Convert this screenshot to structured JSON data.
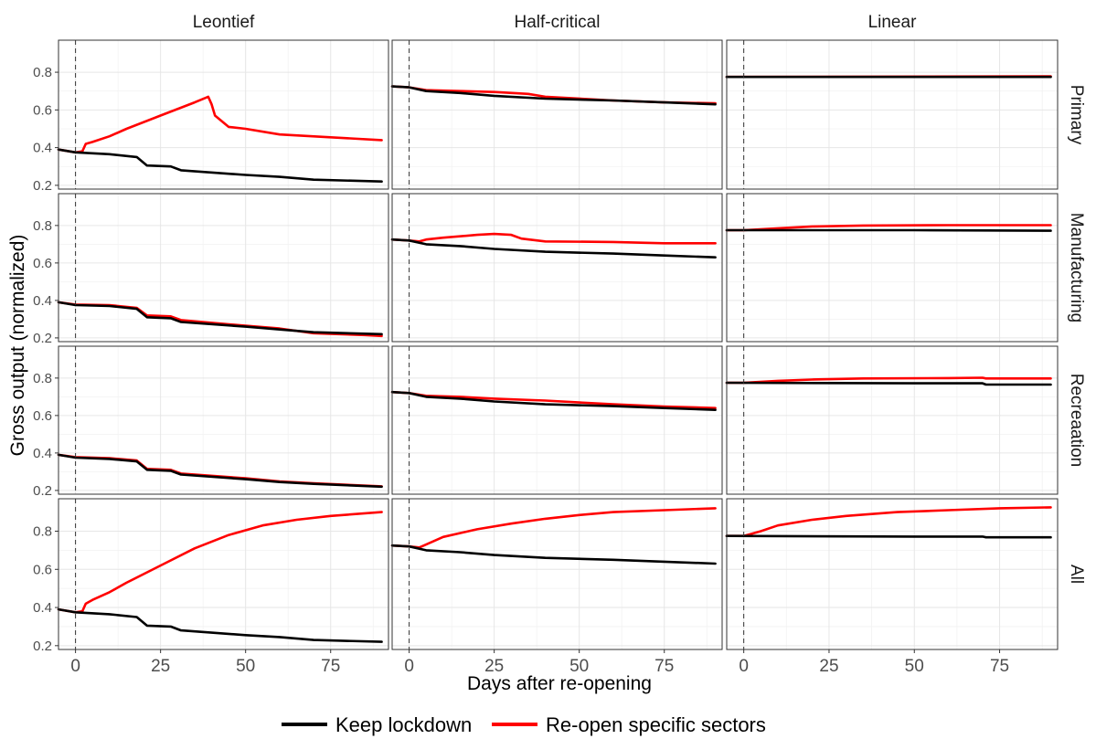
{
  "chart_data": {
    "type": "line",
    "xlabel": "Days after re-opening",
    "ylabel": "Gross output (normalized)",
    "xlim": [
      -5,
      92
    ],
    "ylim": [
      0.18,
      0.97
    ],
    "x_ticks": [
      0,
      25,
      50,
      75
    ],
    "y_ticks": [
      0.2,
      0.4,
      0.6,
      0.8
    ],
    "reference_line_x": 0,
    "columns": [
      "Leontief",
      "Half-critical",
      "Linear"
    ],
    "rows": [
      "Primary",
      "Manufacturing",
      "Recreaation",
      "All"
    ],
    "legend": {
      "position": "bottom",
      "items": [
        {
          "name": "Keep lockdown",
          "color": "#000000"
        },
        {
          "name": "Re-open specific sectors",
          "color": "#ff0000"
        }
      ]
    },
    "panels": [
      {
        "row": "Primary",
        "col": "Leontief",
        "lockdown": [
          [
            -5,
            0.39
          ],
          [
            0,
            0.375
          ],
          [
            10,
            0.365
          ],
          [
            18,
            0.35
          ],
          [
            21,
            0.305
          ],
          [
            28,
            0.3
          ],
          [
            31,
            0.28
          ],
          [
            50,
            0.255
          ],
          [
            60,
            0.245
          ],
          [
            70,
            0.23
          ],
          [
            90,
            0.22
          ]
        ],
        "reopen": [
          [
            -5,
            0.39
          ],
          [
            0,
            0.375
          ],
          [
            2,
            0.38
          ],
          [
            3,
            0.42
          ],
          [
            5,
            0.43
          ],
          [
            10,
            0.46
          ],
          [
            15,
            0.5
          ],
          [
            25,
            0.57
          ],
          [
            35,
            0.64
          ],
          [
            39,
            0.67
          ],
          [
            40,
            0.63
          ],
          [
            41,
            0.57
          ],
          [
            45,
            0.51
          ],
          [
            50,
            0.5
          ],
          [
            60,
            0.47
          ],
          [
            75,
            0.455
          ],
          [
            90,
            0.44
          ]
        ]
      },
      {
        "row": "Primary",
        "col": "Half-critical",
        "lockdown": [
          [
            -5,
            0.725
          ],
          [
            0,
            0.72
          ],
          [
            5,
            0.7
          ],
          [
            15,
            0.69
          ],
          [
            25,
            0.675
          ],
          [
            40,
            0.66
          ],
          [
            60,
            0.65
          ],
          [
            75,
            0.64
          ],
          [
            90,
            0.63
          ]
        ],
        "reopen": [
          [
            -5,
            0.725
          ],
          [
            0,
            0.72
          ],
          [
            5,
            0.705
          ],
          [
            15,
            0.7
          ],
          [
            25,
            0.695
          ],
          [
            35,
            0.685
          ],
          [
            40,
            0.67
          ],
          [
            60,
            0.65
          ],
          [
            75,
            0.64
          ],
          [
            90,
            0.635
          ]
        ]
      },
      {
        "row": "Primary",
        "col": "Linear",
        "lockdown": [
          [
            -5,
            0.775
          ],
          [
            90,
            0.775
          ]
        ],
        "reopen": [
          [
            -5,
            0.775
          ],
          [
            90,
            0.778
          ]
        ]
      },
      {
        "row": "Manufacturing",
        "col": "Leontief",
        "lockdown": [
          [
            -5,
            0.39
          ],
          [
            0,
            0.375
          ],
          [
            10,
            0.37
          ],
          [
            18,
            0.355
          ],
          [
            21,
            0.31
          ],
          [
            28,
            0.305
          ],
          [
            31,
            0.285
          ],
          [
            50,
            0.26
          ],
          [
            60,
            0.245
          ],
          [
            70,
            0.23
          ],
          [
            90,
            0.22
          ]
        ],
        "reopen": [
          [
            -5,
            0.39
          ],
          [
            0,
            0.378
          ],
          [
            10,
            0.375
          ],
          [
            18,
            0.36
          ],
          [
            21,
            0.32
          ],
          [
            28,
            0.315
          ],
          [
            31,
            0.295
          ],
          [
            50,
            0.265
          ],
          [
            60,
            0.25
          ],
          [
            70,
            0.225
          ],
          [
            85,
            0.215
          ],
          [
            90,
            0.21
          ]
        ]
      },
      {
        "row": "Manufacturing",
        "col": "Half-critical",
        "lockdown": [
          [
            -5,
            0.725
          ],
          [
            0,
            0.72
          ],
          [
            5,
            0.7
          ],
          [
            15,
            0.69
          ],
          [
            25,
            0.675
          ],
          [
            40,
            0.66
          ],
          [
            60,
            0.65
          ],
          [
            75,
            0.64
          ],
          [
            90,
            0.63
          ]
        ],
        "reopen": [
          [
            -5,
            0.725
          ],
          [
            0,
            0.72
          ],
          [
            3,
            0.715
          ],
          [
            5,
            0.725
          ],
          [
            10,
            0.735
          ],
          [
            20,
            0.75
          ],
          [
            25,
            0.755
          ],
          [
            30,
            0.75
          ],
          [
            33,
            0.73
          ],
          [
            40,
            0.715
          ],
          [
            60,
            0.712
          ],
          [
            75,
            0.705
          ],
          [
            90,
            0.705
          ]
        ]
      },
      {
        "row": "Manufacturing",
        "col": "Linear",
        "lockdown": [
          [
            -5,
            0.775
          ],
          [
            50,
            0.775
          ],
          [
            90,
            0.772
          ]
        ],
        "reopen": [
          [
            -5,
            0.775
          ],
          [
            0,
            0.775
          ],
          [
            10,
            0.785
          ],
          [
            20,
            0.795
          ],
          [
            35,
            0.8
          ],
          [
            60,
            0.802
          ],
          [
            90,
            0.802
          ]
        ]
      },
      {
        "row": "Recreaation",
        "col": "Leontief",
        "lockdown": [
          [
            -5,
            0.39
          ],
          [
            0,
            0.375
          ],
          [
            10,
            0.368
          ],
          [
            18,
            0.355
          ],
          [
            21,
            0.31
          ],
          [
            28,
            0.305
          ],
          [
            31,
            0.285
          ],
          [
            50,
            0.26
          ],
          [
            60,
            0.245
          ],
          [
            70,
            0.235
          ],
          [
            90,
            0.22
          ]
        ],
        "reopen": [
          [
            -5,
            0.39
          ],
          [
            0,
            0.378
          ],
          [
            10,
            0.372
          ],
          [
            18,
            0.36
          ],
          [
            21,
            0.315
          ],
          [
            28,
            0.31
          ],
          [
            31,
            0.29
          ],
          [
            50,
            0.265
          ],
          [
            60,
            0.248
          ],
          [
            70,
            0.238
          ],
          [
            90,
            0.222
          ]
        ]
      },
      {
        "row": "Recreaation",
        "col": "Half-critical",
        "lockdown": [
          [
            -5,
            0.725
          ],
          [
            0,
            0.72
          ],
          [
            5,
            0.7
          ],
          [
            15,
            0.69
          ],
          [
            25,
            0.675
          ],
          [
            40,
            0.66
          ],
          [
            60,
            0.65
          ],
          [
            75,
            0.64
          ],
          [
            90,
            0.63
          ]
        ],
        "reopen": [
          [
            -5,
            0.725
          ],
          [
            0,
            0.72
          ],
          [
            5,
            0.705
          ],
          [
            15,
            0.7
          ],
          [
            25,
            0.69
          ],
          [
            40,
            0.68
          ],
          [
            60,
            0.66
          ],
          [
            75,
            0.648
          ],
          [
            90,
            0.64
          ]
        ]
      },
      {
        "row": "Recreaation",
        "col": "Linear",
        "lockdown": [
          [
            -5,
            0.775
          ],
          [
            50,
            0.772
          ],
          [
            70,
            0.772
          ],
          [
            71,
            0.765
          ],
          [
            90,
            0.765
          ]
        ],
        "reopen": [
          [
            -5,
            0.775
          ],
          [
            0,
            0.775
          ],
          [
            10,
            0.785
          ],
          [
            20,
            0.792
          ],
          [
            35,
            0.798
          ],
          [
            60,
            0.8
          ],
          [
            70,
            0.802
          ],
          [
            71,
            0.798
          ],
          [
            90,
            0.798
          ]
        ]
      },
      {
        "row": "All",
        "col": "Leontief",
        "lockdown": [
          [
            -5,
            0.39
          ],
          [
            0,
            0.375
          ],
          [
            10,
            0.365
          ],
          [
            18,
            0.35
          ],
          [
            21,
            0.305
          ],
          [
            28,
            0.3
          ],
          [
            31,
            0.28
          ],
          [
            50,
            0.255
          ],
          [
            60,
            0.245
          ],
          [
            70,
            0.23
          ],
          [
            90,
            0.22
          ]
        ],
        "reopen": [
          [
            -5,
            0.39
          ],
          [
            0,
            0.375
          ],
          [
            2,
            0.38
          ],
          [
            3,
            0.42
          ],
          [
            5,
            0.44
          ],
          [
            10,
            0.48
          ],
          [
            15,
            0.53
          ],
          [
            25,
            0.62
          ],
          [
            35,
            0.71
          ],
          [
            45,
            0.78
          ],
          [
            55,
            0.83
          ],
          [
            65,
            0.86
          ],
          [
            75,
            0.88
          ],
          [
            90,
            0.9
          ]
        ]
      },
      {
        "row": "All",
        "col": "Half-critical",
        "lockdown": [
          [
            -5,
            0.725
          ],
          [
            0,
            0.72
          ],
          [
            5,
            0.7
          ],
          [
            15,
            0.69
          ],
          [
            25,
            0.675
          ],
          [
            40,
            0.66
          ],
          [
            60,
            0.65
          ],
          [
            75,
            0.64
          ],
          [
            90,
            0.63
          ]
        ],
        "reopen": [
          [
            -5,
            0.725
          ],
          [
            0,
            0.72
          ],
          [
            3,
            0.715
          ],
          [
            5,
            0.73
          ],
          [
            10,
            0.77
          ],
          [
            20,
            0.81
          ],
          [
            30,
            0.84
          ],
          [
            40,
            0.865
          ],
          [
            50,
            0.885
          ],
          [
            60,
            0.9
          ],
          [
            75,
            0.91
          ],
          [
            90,
            0.92
          ]
        ]
      },
      {
        "row": "All",
        "col": "Linear",
        "lockdown": [
          [
            -5,
            0.775
          ],
          [
            50,
            0.772
          ],
          [
            70,
            0.772
          ],
          [
            71,
            0.768
          ],
          [
            90,
            0.768
          ]
        ],
        "reopen": [
          [
            -5,
            0.775
          ],
          [
            0,
            0.775
          ],
          [
            5,
            0.8
          ],
          [
            10,
            0.83
          ],
          [
            20,
            0.86
          ],
          [
            30,
            0.88
          ],
          [
            45,
            0.9
          ],
          [
            60,
            0.91
          ],
          [
            75,
            0.92
          ],
          [
            90,
            0.925
          ]
        ]
      }
    ]
  }
}
